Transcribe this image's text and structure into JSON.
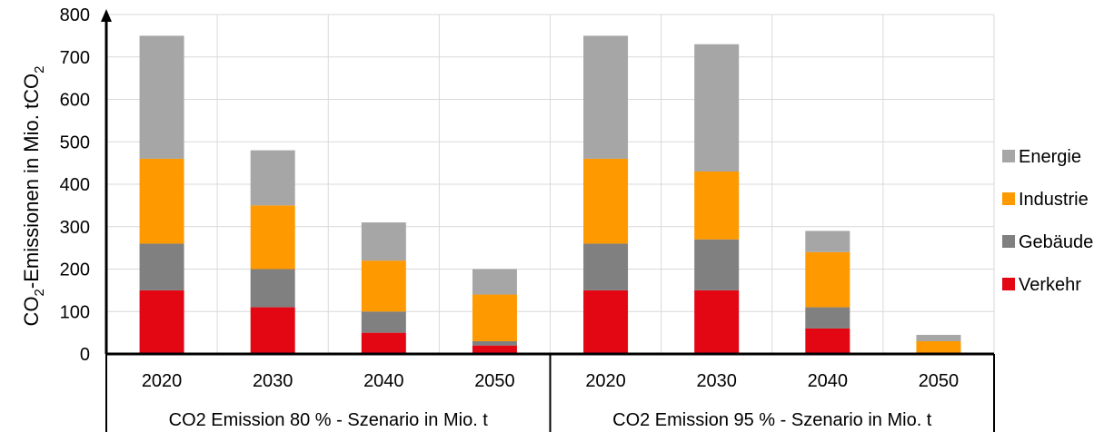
{
  "chart_data": {
    "type": "bar",
    "stacked": true,
    "ylabel": {
      "prefix": "CO",
      "sub1": "2",
      "middle": "-Emissionen in Mio. tCO",
      "sub2": "2"
    },
    "ylim": [
      0,
      800
    ],
    "yticks": [
      "0",
      "100",
      "200",
      "300",
      "400",
      "500",
      "600",
      "700",
      "800"
    ],
    "ytick_values": [
      0,
      100,
      200,
      300,
      400,
      500,
      600,
      700,
      800
    ],
    "grid": true,
    "legend_position": "right",
    "groups": [
      {
        "label": "CO2 Emission 80 % - Szenario in Mio. t",
        "categories": [
          "2020",
          "2030",
          "2040",
          "2050"
        ]
      },
      {
        "label": "CO2 Emission 95 % - Szenario in Mio. t",
        "categories": [
          "2020",
          "2030",
          "2040",
          "2050"
        ]
      }
    ],
    "series": [
      {
        "name": "Verkehr",
        "color": "#e30613",
        "values": [
          150,
          110,
          50,
          20,
          150,
          150,
          60,
          0
        ]
      },
      {
        "name": "Gebäude",
        "color": "#808080",
        "values": [
          110,
          90,
          50,
          10,
          110,
          120,
          50,
          0
        ]
      },
      {
        "name": "Industrie",
        "color": "#ff9900",
        "values": [
          200,
          150,
          120,
          110,
          200,
          160,
          130,
          30
        ]
      },
      {
        "name": "Energie",
        "color": "#a6a6a6",
        "values": [
          290,
          130,
          90,
          60,
          290,
          300,
          50,
          15
        ]
      }
    ]
  }
}
